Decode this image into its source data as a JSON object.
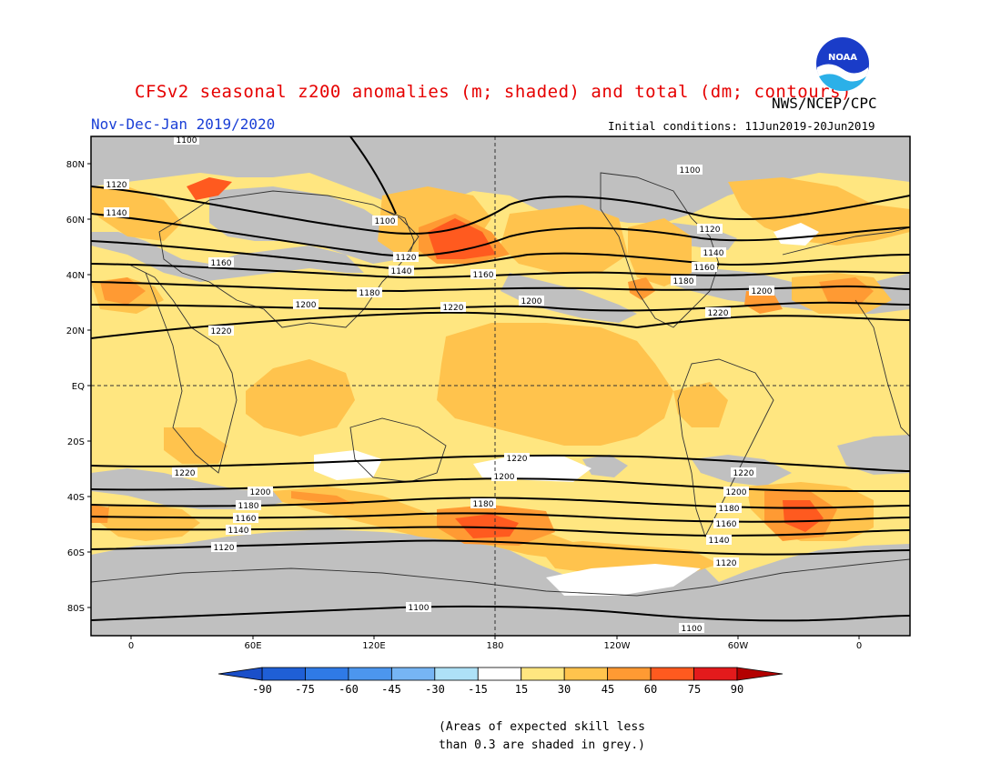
{
  "title": "CFSv2 seasonal z200 anomalies (m; shaded) and total (dm; contours)",
  "agency": "NWS/NCEP/CPC",
  "logo_text": "NOAA",
  "period": "Nov-Dec-Jan 2019/2020",
  "initial_conditions": "Initial conditions: 11Jun2019-20Jun2019",
  "map": {
    "lat_labels": [
      "80N",
      "60N",
      "40N",
      "20N",
      "EQ",
      "20S",
      "40S",
      "60S",
      "80S"
    ],
    "lon_labels": [
      "0",
      "60E",
      "120E",
      "180",
      "120W",
      "60W",
      "0"
    ],
    "contour_labels": [
      "1100",
      "1120",
      "1140",
      "1160",
      "1180",
      "1200",
      "1220"
    ],
    "colors": {
      "grey": "#c0c0c0",
      "white": "#ffffff",
      "lt_yellow": "#ffe680",
      "yellow_orange": "#ffc34d",
      "orange": "#ff9a33",
      "red_orange": "#ff5a1f",
      "red": "#e31a1c"
    }
  },
  "colorbar": {
    "ticks": [
      "-90",
      "-75",
      "-60",
      "-45",
      "-30",
      "-15",
      "15",
      "30",
      "45",
      "60",
      "75",
      "90"
    ],
    "colors": [
      "#1f5fd6",
      "#2f7ae6",
      "#4c96ee",
      "#76b5f4",
      "#aee1f7",
      "#ffffff",
      "#ffe680",
      "#ffc34d",
      "#ff9a33",
      "#ff5a1f",
      "#e31a1c"
    ],
    "left_arrow_color": "#1a4fc9",
    "right_arrow_color": "#b30000"
  },
  "note_line1": "(Areas of expected skill less",
  "note_line2": "than 0.3 are shaded in grey.)"
}
